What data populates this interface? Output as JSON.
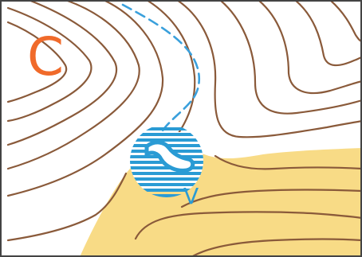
{
  "map": {
    "colors": {
      "background": "#ffffff",
      "terrain_fill": "#f8db86",
      "contour": "#8a5a3a",
      "water": "#2a9bd4",
      "water_dashed": "#3aa0dc",
      "label_c": "#f06a2a",
      "label_v": "#2a9bd4",
      "frame": "#444444"
    },
    "features": {
      "terrain": "yellow-open-land",
      "contours": "brown-contour-lines",
      "stream": "dashed-blue-stream",
      "pond": "blue-pond-symbol",
      "hollow": "depression-symbol"
    },
    "labels": {
      "c": "C",
      "v": "V"
    }
  }
}
